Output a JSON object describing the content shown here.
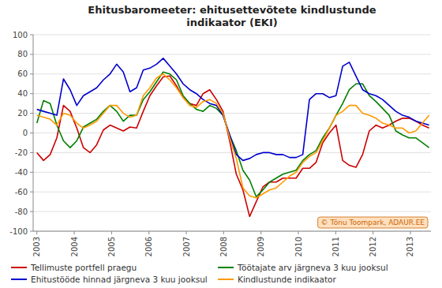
{
  "chart_data": {
    "type": "line",
    "title": "Ehitusbaromeeter: ehitusettevõtete kindlustunde\nindikaator (EKI)",
    "annotations": [
      "© Tõnu Toompark, ADAUR.EE"
    ],
    "x": [
      2003,
      2003.178,
      2003.3559,
      2003.5339,
      2003.7119,
      2003.8898,
      2004.0678,
      2004.2458,
      2004.4237,
      2004.6017,
      2004.7797,
      2004.9576,
      2005.1356,
      2005.3136,
      2005.4915,
      2005.6695,
      2005.8475,
      2006.0254,
      2006.2034,
      2006.3814,
      2006.5593,
      2006.7373,
      2006.9153,
      2007.0932,
      2007.2712,
      2007.4492,
      2007.6271,
      2007.8051,
      2007.9831,
      2008.161,
      2008.339,
      2008.5169,
      2008.6949,
      2008.8729,
      2009.0508,
      2009.2288,
      2009.4068,
      2009.5847,
      2009.7627,
      2009.9407,
      2010.1186,
      2010.2966,
      2010.4746,
      2010.6525,
      2010.8305,
      2011.0085,
      2011.1864,
      2011.3644,
      2011.5424,
      2011.7203,
      2011.8983,
      2012.0763,
      2012.2542,
      2012.4322,
      2012.6102,
      2012.7881,
      2012.9661,
      2013.1441,
      2013.322,
      2013.5
    ],
    "xlim": [
      2002.9,
      2013.55
    ],
    "xticks": [
      2003,
      2004,
      2005,
      2006,
      2007,
      2008,
      2009,
      2010,
      2011,
      2012,
      2013
    ],
    "ylim": [
      -100,
      100
    ],
    "yticks": [
      -100,
      -80,
      -60,
      -40,
      -20,
      0,
      20,
      40,
      60,
      80,
      100
    ],
    "grid": true,
    "legend": "bottom",
    "series": [
      {
        "name": "Tellimuste portfell praegu",
        "color": "#cc0000",
        "values": [
          -20,
          -28,
          -22,
          -5,
          28,
          22,
          5,
          -15,
          -20,
          -12,
          3,
          8,
          5,
          2,
          6,
          5,
          22,
          38,
          48,
          57,
          58,
          48,
          36,
          30,
          28,
          40,
          44,
          34,
          22,
          -8,
          -42,
          -58,
          -85,
          -70,
          -55,
          -50,
          -50,
          -46,
          -46,
          -46,
          -36,
          -36,
          -30,
          -10,
          0,
          8,
          -28,
          -33,
          -35,
          -22,
          2,
          8,
          5,
          8,
          12,
          15,
          15,
          12,
          8,
          5
        ]
      },
      {
        "name": "Töötajate arv järgneva 3 kuu jooksul",
        "color": "#008000",
        "values": [
          10,
          33,
          30,
          8,
          -8,
          -15,
          -8,
          6,
          10,
          14,
          22,
          28,
          22,
          12,
          18,
          18,
          34,
          42,
          52,
          62,
          60,
          54,
          38,
          30,
          24,
          22,
          28,
          25,
          18,
          -2,
          -18,
          -38,
          -48,
          -65,
          -58,
          -50,
          -46,
          -42,
          -40,
          -38,
          -28,
          -22,
          -18,
          -5,
          5,
          18,
          30,
          44,
          50,
          50,
          38,
          32,
          25,
          18,
          2,
          -2,
          -5,
          -5,
          -10,
          -15
        ]
      },
      {
        "name": "Ehitustööde hinnad järgneva 3 kuu jooksul",
        "color": "#0000cc",
        "values": [
          24,
          22,
          20,
          18,
          55,
          44,
          28,
          38,
          42,
          46,
          54,
          60,
          70,
          62,
          42,
          46,
          64,
          66,
          70,
          76,
          68,
          60,
          50,
          44,
          40,
          34,
          30,
          28,
          18,
          -2,
          -22,
          -28,
          -26,
          -22,
          -20,
          -20,
          -22,
          -22,
          -25,
          -25,
          -22,
          34,
          40,
          40,
          36,
          38,
          68,
          72,
          58,
          44,
          40,
          38,
          34,
          28,
          22,
          18,
          16,
          12,
          10,
          8
        ]
      },
      {
        "name": "Kindlustunde indikaator",
        "color": "#ff9900",
        "values": [
          18,
          16,
          14,
          8,
          20,
          18,
          10,
          5,
          8,
          12,
          20,
          28,
          28,
          20,
          16,
          18,
          38,
          46,
          56,
          60,
          54,
          46,
          36,
          28,
          26,
          32,
          34,
          30,
          20,
          -5,
          -26,
          -56,
          -64,
          -66,
          -62,
          -58,
          -56,
          -50,
          -44,
          -40,
          -30,
          -24,
          -20,
          -8,
          5,
          18,
          22,
          28,
          28,
          20,
          18,
          15,
          10,
          8,
          5,
          5,
          0,
          2,
          10,
          18
        ]
      }
    ]
  }
}
